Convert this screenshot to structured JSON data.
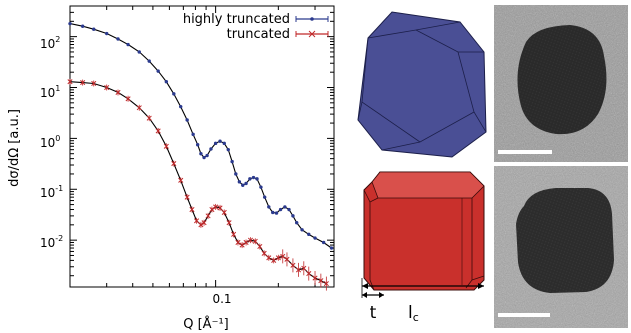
{
  "chart_data": {
    "type": "scatter",
    "xlabel": "Q [Å⁻¹]",
    "ylabel": "dσ/dΩ [a.u.]",
    "x_scale": "log",
    "y_scale": "log",
    "xlim": [
      0.02,
      0.37
    ],
    "ylim": [
      0.0012,
      400
    ],
    "x_ticks": [
      {
        "value": 0.1,
        "label": "0.1"
      }
    ],
    "y_ticks": [
      {
        "value": 100,
        "base": "10",
        "exp": "2"
      },
      {
        "value": 10,
        "base": "10",
        "exp": "1"
      },
      {
        "value": 1,
        "base": "10",
        "exp": "0"
      },
      {
        "value": 0.1,
        "base": "10",
        "exp": "-1"
      },
      {
        "value": 0.01,
        "base": "10",
        "exp": "-2"
      }
    ],
    "legend_position": "top-right",
    "grid": false,
    "series": [
      {
        "name": "highly truncated",
        "color": "#2b3a8e",
        "fit_color": "#000000",
        "points": [
          [
            0.02,
            180
          ],
          [
            0.023,
            160
          ],
          [
            0.026,
            140
          ],
          [
            0.03,
            115
          ],
          [
            0.034,
            90
          ],
          [
            0.038,
            70
          ],
          [
            0.043,
            50
          ],
          [
            0.048,
            33
          ],
          [
            0.053,
            21
          ],
          [
            0.058,
            13
          ],
          [
            0.063,
            7.5
          ],
          [
            0.068,
            4.2
          ],
          [
            0.073,
            2.3
          ],
          [
            0.078,
            1.2
          ],
          [
            0.082,
            0.75
          ],
          [
            0.085,
            0.5
          ],
          [
            0.088,
            0.42
          ],
          [
            0.091,
            0.46
          ],
          [
            0.095,
            0.62
          ],
          [
            0.1,
            0.8
          ],
          [
            0.105,
            0.88
          ],
          [
            0.11,
            0.8
          ],
          [
            0.115,
            0.6
          ],
          [
            0.12,
            0.35
          ],
          [
            0.125,
            0.2
          ],
          [
            0.13,
            0.14
          ],
          [
            0.135,
            0.12
          ],
          [
            0.14,
            0.13
          ],
          [
            0.146,
            0.16
          ],
          [
            0.152,
            0.17
          ],
          [
            0.158,
            0.16
          ],
          [
            0.165,
            0.11
          ],
          [
            0.172,
            0.07
          ],
          [
            0.18,
            0.045
          ],
          [
            0.188,
            0.035
          ],
          [
            0.196,
            0.034
          ],
          [
            0.205,
            0.04
          ],
          [
            0.215,
            0.045
          ],
          [
            0.225,
            0.04
          ],
          [
            0.235,
            0.03
          ],
          [
            0.245,
            0.022
          ],
          [
            0.26,
            0.016
          ],
          [
            0.28,
            0.013
          ],
          [
            0.3,
            0.011
          ],
          [
            0.33,
            0.009
          ],
          [
            0.36,
            0.007
          ]
        ]
      },
      {
        "name": "truncated",
        "color": "#c0292b",
        "fit_color": "#000000",
        "points": [
          [
            0.02,
            13
          ],
          [
            0.023,
            12.5
          ],
          [
            0.026,
            12
          ],
          [
            0.03,
            10
          ],
          [
            0.034,
            8
          ],
          [
            0.038,
            6
          ],
          [
            0.043,
            4
          ],
          [
            0.048,
            2.5
          ],
          [
            0.053,
            1.4
          ],
          [
            0.058,
            0.7
          ],
          [
            0.063,
            0.32
          ],
          [
            0.068,
            0.15
          ],
          [
            0.073,
            0.07
          ],
          [
            0.077,
            0.04
          ],
          [
            0.081,
            0.024
          ],
          [
            0.085,
            0.02
          ],
          [
            0.088,
            0.022
          ],
          [
            0.092,
            0.03
          ],
          [
            0.096,
            0.04
          ],
          [
            0.1,
            0.045
          ],
          [
            0.105,
            0.043
          ],
          [
            0.11,
            0.035
          ],
          [
            0.116,
            0.022
          ],
          [
            0.122,
            0.013
          ],
          [
            0.128,
            0.009
          ],
          [
            0.134,
            0.008
          ],
          [
            0.14,
            0.009
          ],
          [
            0.147,
            0.01
          ],
          [
            0.155,
            0.0095
          ],
          [
            0.163,
            0.0075
          ],
          [
            0.171,
            0.0055
          ],
          [
            0.18,
            0.0045
          ],
          [
            0.19,
            0.004
          ],
          [
            0.2,
            0.0045
          ],
          [
            0.21,
            0.0048
          ],
          [
            0.22,
            0.0042
          ],
          [
            0.235,
            0.0032
          ],
          [
            0.25,
            0.0026
          ],
          [
            0.265,
            0.0028
          ],
          [
            0.28,
            0.0022
          ],
          [
            0.3,
            0.0018
          ],
          [
            0.32,
            0.0016
          ],
          [
            0.34,
            0.0014
          ]
        ]
      }
    ]
  },
  "diagram": {
    "dim_t": "t",
    "dim_lc_base": "l",
    "dim_lc_sub": "c",
    "shape_colors": {
      "highly_truncated": "#4a4f95",
      "truncated": "#c9302c"
    }
  }
}
